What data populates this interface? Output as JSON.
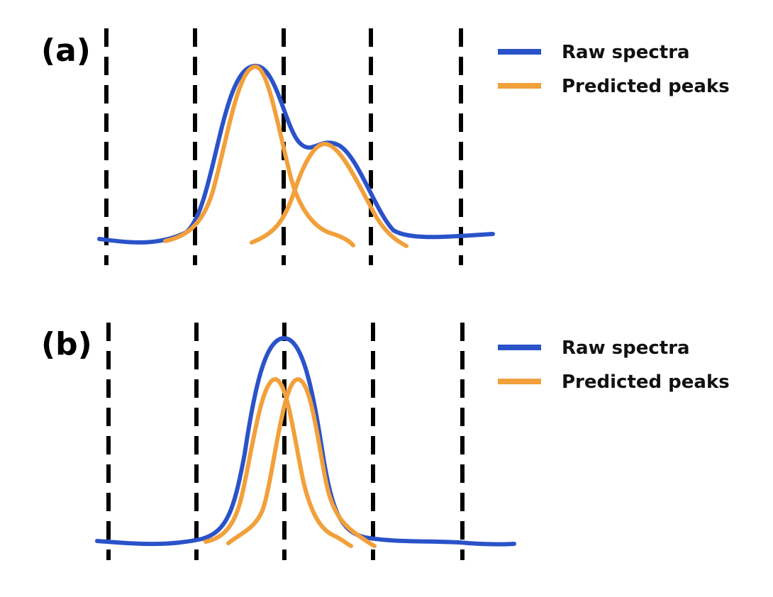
{
  "panels": [
    {
      "label": "(a)",
      "legend": [
        "Raw spectra",
        "Predicted peaks"
      ]
    },
    {
      "label": "(b)",
      "legend": [
        "Raw spectra",
        "Predicted peaks"
      ]
    }
  ],
  "colors": {
    "raw_spectra": "#2a52c9",
    "predicted_peaks": "#f2a03b",
    "divider": "#000000"
  }
}
